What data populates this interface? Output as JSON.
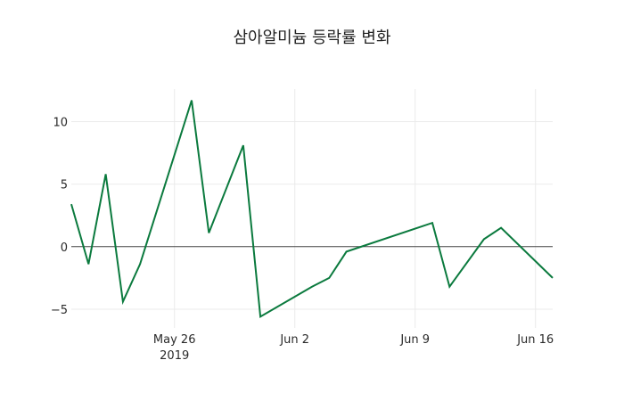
{
  "chart_data": {
    "type": "line",
    "title": "삼아알미늄 등락률 변화",
    "xlabel": "",
    "ylabel": "",
    "x": [
      "2019-05-20",
      "2019-05-21",
      "2019-05-22",
      "2019-05-23",
      "2019-05-24",
      "2019-05-27",
      "2019-05-28",
      "2019-05-30",
      "2019-05-31",
      "2019-06-03",
      "2019-06-04",
      "2019-06-05",
      "2019-06-10",
      "2019-06-11",
      "2019-06-13",
      "2019-06-14",
      "2019-06-17"
    ],
    "series": [
      {
        "name": "등락률",
        "color": "#0b7a3e",
        "values": [
          3.4,
          -1.4,
          5.8,
          -4.4,
          -1.4,
          11.7,
          1.1,
          8.1,
          -5.6,
          -3.2,
          -2.5,
          -0.4,
          1.9,
          -3.2,
          0.6,
          1.5,
          -2.5
        ]
      }
    ],
    "ylim": [
      -6.5,
      12.6
    ],
    "xlim": [
      "2019-05-20",
      "2019-06-17"
    ],
    "yticks": [
      -5,
      0,
      5,
      10
    ],
    "ytick_labels": [
      "−5",
      "0",
      "5",
      "10"
    ],
    "xticks": [
      "2019-05-26",
      "2019-06-02",
      "2019-06-09",
      "2019-06-16"
    ],
    "xtick_labels": [
      "May 26",
      "Jun 2",
      "Jun 9",
      "Jun 16"
    ],
    "xtick_sublabel": "2019",
    "grid": true,
    "zeroline": true,
    "legend": "none"
  }
}
